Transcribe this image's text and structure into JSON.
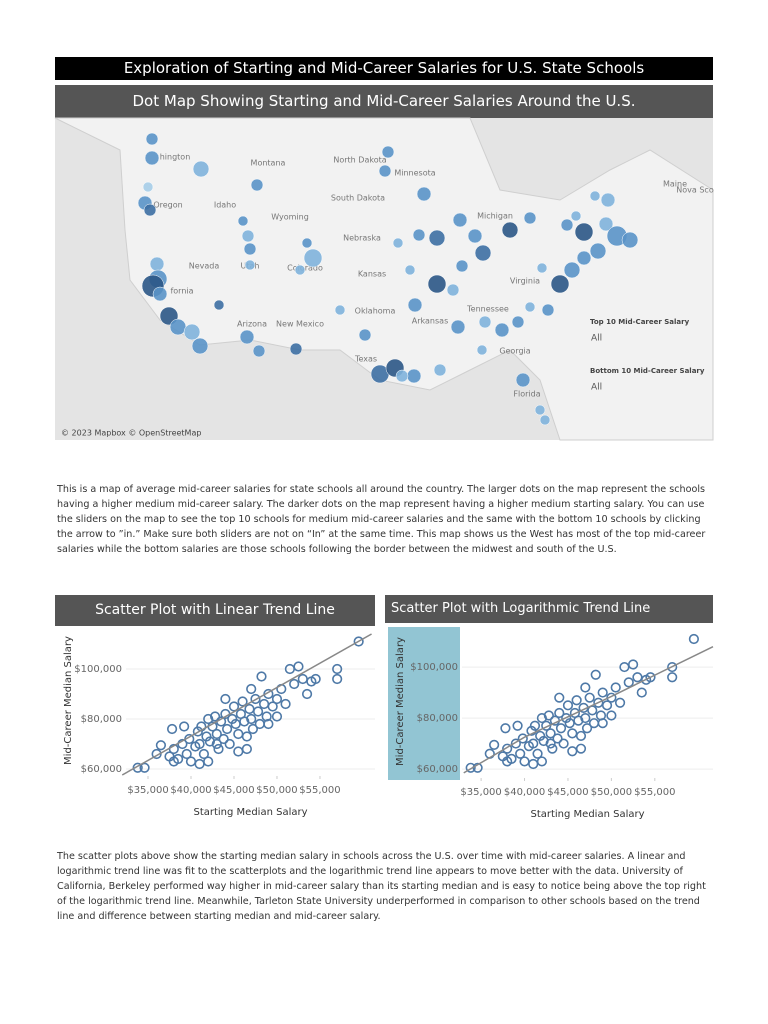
{
  "header": {
    "title": "Exploration of Starting and Mid-Career Salaries for U.S. State Schools"
  },
  "map": {
    "title": "Dot Map Showing Starting and Mid-Career Salaries Around the U.S.",
    "labels": [
      "hington",
      "Montana",
      "North Dakota",
      "Minnesota",
      "Maine",
      "Nova Sco",
      "South Dakota",
      "Oregon",
      "Idaho",
      "Wyoming",
      "Nebraska",
      "Nevada",
      "Utah",
      "Colorado",
      "Kansas",
      "fornia",
      "Arizona",
      "New Mexico",
      "Oklahoma",
      "Arkansas",
      "Tennessee",
      "Texas",
      "Georgia",
      "Florida",
      "Virginia",
      "Michigan"
    ],
    "filters": [
      {
        "label": "Top 10 Mid-Career Salary",
        "value": "All"
      },
      {
        "label": "Bottom 10 Mid-Career Salary",
        "value": "All"
      }
    ],
    "attribution": "© 2023 Mapbox © OpenStreetMap"
  },
  "text1": "This is a map of average mid-career salaries for state schools all around the country. The larger dots on the map represent the schools having a higher medium mid-career salary. The darker dots on the map represent having a higher medium starting salary. You can use the sliders on the map to see the top 10 schools for medium mid-career salaries and the same with the bottom 10 schools by clicking the arrow to ”in.” Make sure both sliders are not on “In” at the same time. This map shows us the West has most of the top mid-career salaries while the bottom salaries are those schools following the border between the midwest and south of the U.S.",
  "chart_data": [
    {
      "type": "scatter",
      "title": "Scatter Plot with Linear Trend Line",
      "x_label": "Starting Median Salary",
      "y_label": "Mid-Career Median Salary",
      "color": "#4e79a7",
      "trend_color": "#888888",
      "grid": true,
      "x": [
        33800,
        34600,
        36000,
        36500,
        37500,
        38000,
        38500,
        39000,
        39500,
        39800,
        40000,
        40500,
        40800,
        41000,
        41200,
        41500,
        41800,
        42000,
        42200,
        42500,
        42800,
        43000,
        43200,
        43500,
        43800,
        44000,
        44200,
        44500,
        44800,
        45000,
        45200,
        45500,
        45800,
        46000,
        46200,
        46500,
        46800,
        47000,
        47200,
        47500,
        47800,
        48000,
        48200,
        48500,
        48800,
        49000,
        49500,
        50000,
        50500,
        51000,
        51500,
        52000,
        52500,
        53000,
        53500,
        54000,
        54500,
        57000,
        57000,
        59500,
        37800,
        39200,
        43000,
        45500,
        46500,
        41000,
        42000,
        38000,
        44000,
        47000,
        50000,
        49000
      ],
      "y": [
        60500,
        60500,
        66000,
        69500,
        65000,
        68000,
        64000,
        70000,
        66000,
        72000,
        63000,
        69000,
        75000,
        70000,
        77000,
        66000,
        73000,
        80000,
        71000,
        77000,
        81000,
        74000,
        68000,
        79000,
        72000,
        82000,
        76000,
        70000,
        80000,
        85000,
        78000,
        74000,
        82000,
        87000,
        79000,
        73000,
        84000,
        80000,
        76000,
        88000,
        83000,
        78000,
        97000,
        86000,
        81000,
        90000,
        85000,
        88000,
        92000,
        86000,
        100000,
        94000,
        101000,
        96000,
        90000,
        95000,
        96000,
        100000,
        96000,
        111000,
        76000,
        77000,
        70000,
        67000,
        68000,
        62000,
        63000,
        63000,
        88000,
        92000,
        81000,
        78000
      ],
      "trend_x": [
        32000,
        61000
      ],
      "trend_y": [
        57600,
        114000
      ],
      "xlim": [
        32440,
        61400
      ],
      "ylim": [
        57200,
        117600
      ],
      "xticks": [
        {
          "value": 35000,
          "label": "$35,000"
        },
        {
          "value": 40000,
          "label": "$40,000"
        },
        {
          "value": 45000,
          "label": "$45,000"
        },
        {
          "value": 50000,
          "label": "$50,000"
        },
        {
          "value": 55000,
          "label": "$55,000"
        }
      ],
      "yticks": [
        {
          "value": 60000,
          "label": "$60,000"
        },
        {
          "value": 80000,
          "label": "$80,000"
        },
        {
          "value": 100000,
          "label": "$100,000"
        }
      ]
    },
    {
      "type": "scatter",
      "title": "Scatter Plot with Logarithmic Trend Line",
      "x_label": "Starting Median Salary",
      "y_label": "Mid-Career Median Salary",
      "color": "#4e79a7",
      "trend_color": "#888888",
      "grid": true,
      "x": [
        33800,
        34600,
        36000,
        36500,
        37500,
        38000,
        38500,
        39000,
        39500,
        39800,
        40000,
        40500,
        40800,
        41000,
        41200,
        41500,
        41800,
        42000,
        42200,
        42500,
        42800,
        43000,
        43200,
        43500,
        43800,
        44000,
        44200,
        44500,
        44800,
        45000,
        45200,
        45500,
        45800,
        46000,
        46200,
        46500,
        46800,
        47000,
        47200,
        47500,
        47800,
        48000,
        48200,
        48500,
        48800,
        49000,
        49500,
        50000,
        50500,
        51000,
        51500,
        52000,
        52500,
        53000,
        53500,
        54000,
        54500,
        57000,
        57000,
        59500,
        37800,
        39200,
        43000,
        45500,
        46500,
        41000,
        42000,
        38000,
        44000,
        47000,
        50000,
        49000
      ],
      "y": [
        60500,
        60500,
        66000,
        69500,
        65000,
        68000,
        64000,
        70000,
        66000,
        72000,
        63000,
        69000,
        75000,
        70000,
        77000,
        66000,
        73000,
        80000,
        71000,
        77000,
        81000,
        74000,
        68000,
        79000,
        72000,
        82000,
        76000,
        70000,
        80000,
        85000,
        78000,
        74000,
        82000,
        87000,
        79000,
        73000,
        84000,
        80000,
        76000,
        88000,
        83000,
        78000,
        97000,
        86000,
        81000,
        90000,
        85000,
        88000,
        92000,
        86000,
        100000,
        94000,
        101000,
        96000,
        90000,
        95000,
        96000,
        100000,
        96000,
        111000,
        76000,
        77000,
        70000,
        67000,
        68000,
        62000,
        63000,
        63000,
        88000,
        92000,
        81000,
        78000
      ],
      "trend_x": [
        33000,
        40000,
        50000,
        61700
      ],
      "trend_y": [
        58500,
        72500,
        88500,
        108000
      ],
      "xlim": [
        32800,
        61700
      ],
      "ylim": [
        56500,
        116500
      ],
      "xticks": [
        {
          "value": 35000,
          "label": "$35,000"
        },
        {
          "value": 40000,
          "label": "$40,000"
        },
        {
          "value": 45000,
          "label": "$45,000"
        },
        {
          "value": 50000,
          "label": "$50,000"
        },
        {
          "value": 55000,
          "label": "$55,000"
        }
      ],
      "yticks": [
        {
          "value": 60000,
          "label": "$60,000"
        },
        {
          "value": 80000,
          "label": "$80,000"
        },
        {
          "value": 100000,
          "label": "$100,000"
        }
      ]
    }
  ],
  "text2": "The scatter plots above show the starting median salary in schools across the U.S. over time with mid-career salaries. A linear and logarithmic trend line was fit to the scatterplots and the logarithmic trend line appears to move better with the data.  University of California, Berkeley performed way higher in mid-career salary than its starting median and is easy to notice being above the top right of the logarithmic trend line. Meanwhile, Tarleton State University underperformed in comparison to other schools based on the trend line and difference between starting median and mid-career salary."
}
